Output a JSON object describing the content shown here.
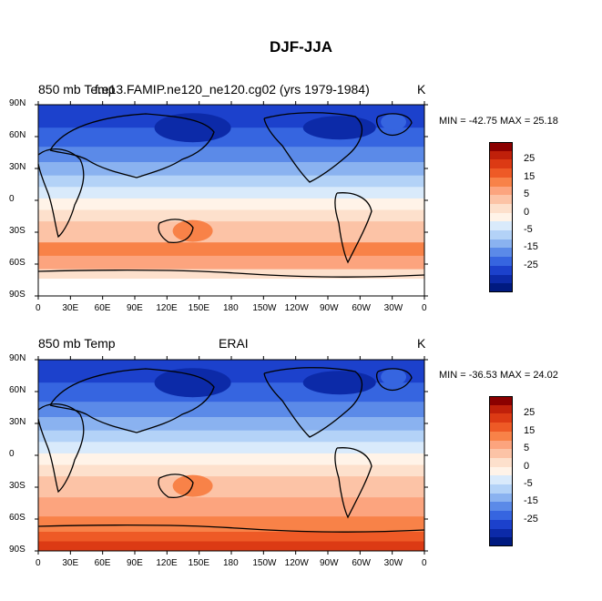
{
  "title": "DJF-JJA",
  "units": "K",
  "panels": [
    {
      "left_title": "850 mb Temp",
      "center_title": "f.e13.FAMIP.ne120_ne120.cg02 (yrs 1979-1984)",
      "stats": "MIN = -42.75  MAX =  25.18"
    },
    {
      "left_title": "850 mb Temp",
      "center_title": "ERAI",
      "stats": "MIN = -36.53  MAX =  24.02"
    }
  ],
  "lat_labels": [
    "90N",
    "60N",
    "30N",
    "0",
    "30S",
    "60S",
    "90S"
  ],
  "lon_labels": [
    "0",
    "30E",
    "60E",
    "90E",
    "120E",
    "150E",
    "180",
    "150W",
    "120W",
    "90W",
    "60W",
    "30W",
    "0"
  ],
  "colorbar": {
    "labels": [
      "25",
      "15",
      "5",
      "0",
      "-5",
      "-15",
      "-25"
    ],
    "colors": [
      "#8b0000",
      "#c0200a",
      "#dc3a14",
      "#ee5a26",
      "#f88248",
      "#fca47e",
      "#fcc3a6",
      "#fde0cc",
      "#fff3e8",
      "#d9eafb",
      "#b3d2f7",
      "#8ab2f0",
      "#5b8ae8",
      "#3665e0",
      "#1c41cc",
      "#0c2aa8",
      "#001a80"
    ]
  }
}
